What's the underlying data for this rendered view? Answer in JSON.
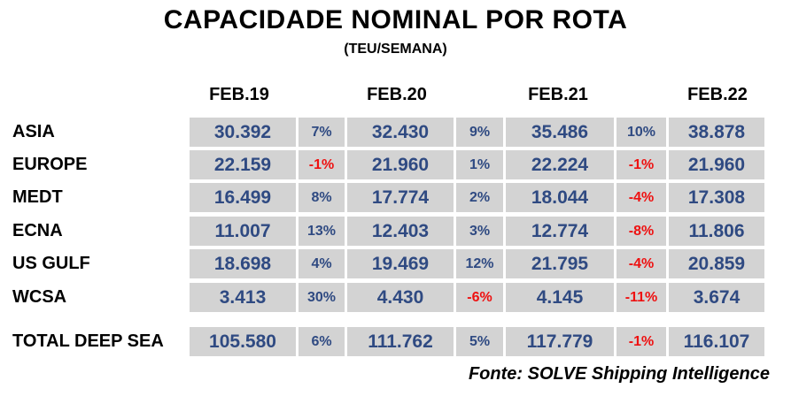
{
  "title": "CAPACIDADE NOMINAL POR ROTA",
  "subtitle": "(TEU/SEMANA)",
  "headers": [
    "FEB.19",
    "FEB.20",
    "FEB.21",
    "FEB.22"
  ],
  "rows": [
    {
      "label": "ASIA",
      "v": [
        "30.392",
        "32.430",
        "35.486",
        "38.878"
      ],
      "p": [
        "7%",
        "9%",
        "10%"
      ]
    },
    {
      "label": "EUROPE",
      "v": [
        "22.159",
        "21.960",
        "22.224",
        "21.960"
      ],
      "p": [
        "-1%",
        "1%",
        "-1%"
      ]
    },
    {
      "label": "MEDT",
      "v": [
        "16.499",
        "17.774",
        "18.044",
        "17.308"
      ],
      "p": [
        "8%",
        "2%",
        "-4%"
      ]
    },
    {
      "label": "ECNA",
      "v": [
        "11.007",
        "12.403",
        "12.774",
        "11.806"
      ],
      "p": [
        "13%",
        "3%",
        "-8%"
      ]
    },
    {
      "label": "US GULF",
      "v": [
        "18.698",
        "19.469",
        "21.795",
        "20.859"
      ],
      "p": [
        "4%",
        "12%",
        "-4%"
      ]
    },
    {
      "label": "WCSA",
      "v": [
        "3.413",
        "4.430",
        "4.145",
        "3.674"
      ],
      "p": [
        "30%",
        "-6%",
        "-11%"
      ]
    }
  ],
  "total": {
    "label": "TOTAL DEEP SEA",
    "v": [
      "105.580",
      "111.762",
      "117.779",
      "116.107"
    ],
    "p": [
      "6%",
      "5%",
      "-1%"
    ]
  },
  "colors": {
    "cell_bg": "#d3d3d3",
    "value": "#2f4a82",
    "negative": "#ee1111"
  },
  "source": "Fonte: SOLVE Shipping Intelligence"
}
